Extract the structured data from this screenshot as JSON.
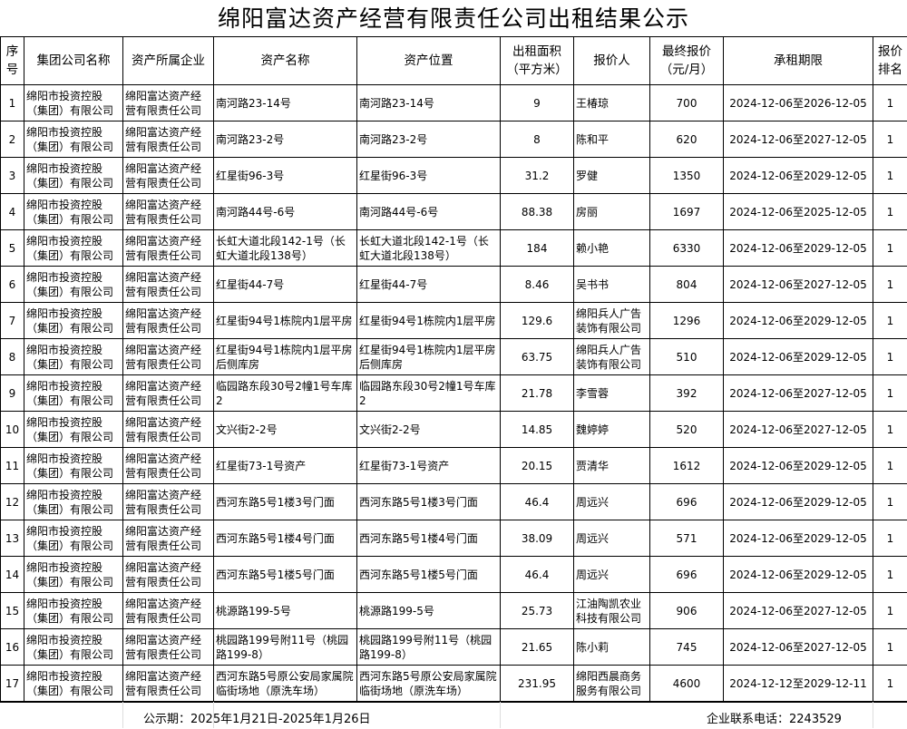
{
  "title": "绵阳富达资产经营有限责任公司出租结果公示",
  "headers": [
    "序号",
    "集团公司名称",
    "资产所属企业",
    "资产名称",
    "资产位置",
    "出租面积（平方米）",
    "报价人",
    "最终报价（元/月）",
    "承租期限",
    "报价排名"
  ],
  "rows": [
    [
      "1",
      "绵阳市投资控股（集团）有限公司",
      "绵阳富达资产经营有限责任公司",
      "南河路23-14号",
      "南河路23-14号",
      "9",
      "王椿琼",
      "700",
      "2024-12-06至2026-12-05",
      "1"
    ],
    [
      "2",
      "绵阳市投资控股（集团）有限公司",
      "绵阳富达资产经营有限责任公司",
      "南河路23-2号",
      "南河路23-2号",
      "8",
      "陈和平",
      "620",
      "2024-12-06至2027-12-05",
      "1"
    ],
    [
      "3",
      "绵阳市投资控股（集团）有限公司",
      "绵阳富达资产经营有限责任公司",
      "红星街96-3号",
      "红星街96-3号",
      "31.2",
      "罗健",
      "1350",
      "2024-12-06至2029-12-05",
      "1"
    ],
    [
      "4",
      "绵阳市投资控股（集团）有限公司",
      "绵阳富达资产经营有限责任公司",
      "南河路44号-6号",
      "南河路44号-6号",
      "88.38",
      "房丽",
      "1697",
      "2024-12-06至2025-12-05",
      "1"
    ],
    [
      "5",
      "绵阳市投资控股（集团）有限公司",
      "绵阳富达资产经营有限责任公司",
      "长虹大道北段142-1号（长虹大道北段138号）",
      "长虹大道北段142-1号（长虹大道北段138号）",
      "184",
      "赖小艳",
      "6330",
      "2024-12-06至2029-12-05",
      "1"
    ],
    [
      "6",
      "绵阳市投资控股（集团）有限公司",
      "绵阳富达资产经营有限责任公司",
      "红星街44-7号",
      "红星街44-7号",
      "8.46",
      "吴书书",
      "804",
      "2024-12-06至2027-12-05",
      "1"
    ],
    [
      "7",
      "绵阳市投资控股（集团）有限公司",
      "绵阳富达资产经营有限责任公司",
      "红星街94号1栋院内1层平房",
      "红星街94号1栋院内1层平房",
      "129.6",
      "绵阳兵人广告装饰有限公司",
      "1296",
      "2024-12-06至2029-12-05",
      "1"
    ],
    [
      "8",
      "绵阳市投资控股（集团）有限公司",
      "绵阳富达资产经营有限责任公司",
      "红星街94号1栋院内1层平房后侧库房",
      "红星街94号1栋院内1层平房后侧库房",
      "63.75",
      "绵阳兵人广告装饰有限公司",
      "510",
      "2024-12-06至2029-12-05",
      "1"
    ],
    [
      "9",
      "绵阳市投资控股（集团）有限公司",
      "绵阳富达资产经营有限责任公司",
      "临园路东段30号2幢1号车库2",
      "临园路东段30号2幢1号车库2",
      "21.78",
      "李雪蓉",
      "392",
      "2024-12-06至2027-12-05",
      "1"
    ],
    [
      "10",
      "绵阳市投资控股（集团）有限公司",
      "绵阳富达资产经营有限责任公司",
      "文兴街2-2号",
      "文兴街2-2号",
      "14.85",
      "魏婷婷",
      "520",
      "2024-12-06至2027-12-05",
      "1"
    ],
    [
      "11",
      "绵阳市投资控股（集团）有限公司",
      "绵阳富达资产经营有限责任公司",
      "红星街73-1号资产",
      "红星街73-1号资产",
      "20.15",
      "贾清华",
      "1612",
      "2024-12-06至2029-12-05",
      "1"
    ],
    [
      "12",
      "绵阳市投资控股（集团）有限公司",
      "绵阳富达资产经营有限责任公司",
      "西河东路5号1楼3号门面",
      "西河东路5号1楼3号门面",
      "46.4",
      "周远兴",
      "696",
      "2024-12-06至2029-12-05",
      "1"
    ],
    [
      "13",
      "绵阳市投资控股（集团）有限公司",
      "绵阳富达资产经营有限责任公司",
      "西河东路5号1楼4号门面",
      "西河东路5号1楼4号门面",
      "38.09",
      "周远兴",
      "571",
      "2024-12-06至2029-12-05",
      "1"
    ],
    [
      "14",
      "绵阳市投资控股（集团）有限公司",
      "绵阳富达资产经营有限责任公司",
      "西河东路5号1楼5号门面",
      "西河东路5号1楼5号门面",
      "46.4",
      "周远兴",
      "696",
      "2024-12-06至2029-12-05",
      "1"
    ],
    [
      "15",
      "绵阳市投资控股（集团）有限公司",
      "绵阳富达资产经营有限责任公司",
      "桃源路199-5号",
      "桃源路199-5号",
      "25.73",
      "江油陶凯农业科技有限公司",
      "906",
      "2024-12-06至2027-12-05",
      "1"
    ],
    [
      "16",
      "绵阳市投资控股（集团）有限公司",
      "绵阳富达资产经营有限责任公司",
      "桃园路199号附11号（桃园路199-8）",
      "桃园路199号附11号（桃园路199-8）",
      "21.65",
      "陈小莉",
      "745",
      "2024-12-06至2027-12-05",
      "1"
    ],
    [
      "17",
      "绵阳市投资控股（集团）有限公司",
      "绵阳富达资产经营有限责任公司",
      "西河东路5号原公安局家属院临街场地（原洗车场）",
      "西河东路5号原公安局家属院临街场地（原洗车场）",
      "231.95",
      "绵阳西晨商务服务有限公司",
      "4600",
      "2024-12-12至2029-12-11",
      "1"
    ]
  ],
  "footer": {
    "period": "公示期：2025年1月21日-2025年1月26日",
    "phone": "企业联系电话：2243529"
  }
}
